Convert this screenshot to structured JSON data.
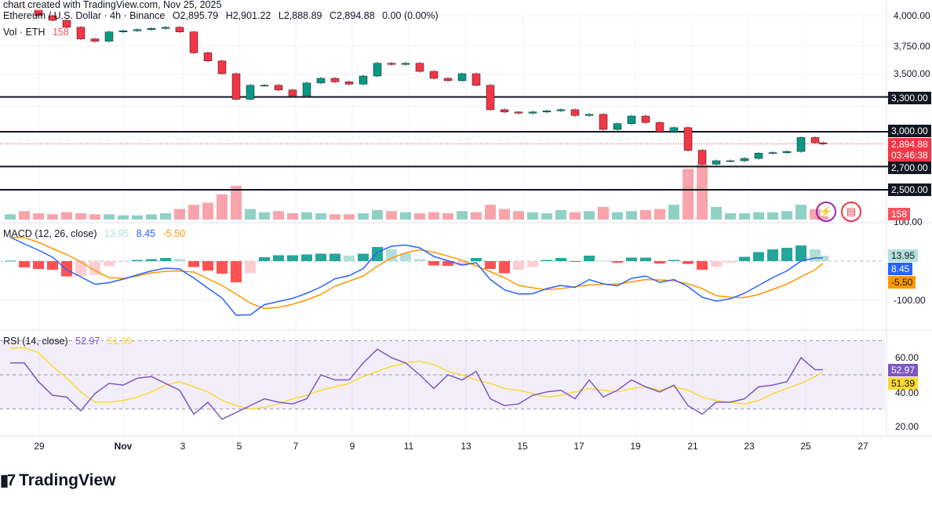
{
  "header": {
    "snapshot_text": "chart created with TradingView.com, Nov 25, 2025",
    "symbol": "Ethereum / U.S. Dollar · 4h · Binance",
    "open": "O2,895.79",
    "high": "H2,901.22",
    "low": "L2,888.89",
    "close": "C2,894.88",
    "change": "0.00 (0.00%)",
    "vol_label": "Vol · ETH",
    "vol_value": "158"
  },
  "macd_legend": {
    "label": "MACD (12, 26, close)",
    "hist": "13.95",
    "macd": "8.45",
    "signal": "-5.50"
  },
  "rsi_legend": {
    "label": "RSI (14, close)",
    "rsi": "52.97",
    "ma": "51.39"
  },
  "price_axis": {
    "ticks": [
      "4,000.00",
      "3,750.00",
      "3,500.00"
    ],
    "levels": [
      "3,300.00",
      "3,000.00",
      "2,700.00",
      "2,500.00"
    ],
    "current_price": "2,894.88",
    "countdown": "03:46:38",
    "volume_tag": "158"
  },
  "macd_axis": {
    "top_tick": "100.00",
    "hist_tag": "13.95",
    "macd_tag": "8.45",
    "signal_tag": "-5.50",
    "bottom_tick": "-100.00"
  },
  "rsi_axis": {
    "tick_60": "60.00",
    "rsi_tag": "52.97",
    "ma_tag": "51.39",
    "tick_40": "40.00",
    "tick_20": "20.00"
  },
  "date_axis": [
    "29",
    "Nov",
    "3",
    "5",
    "7",
    "9",
    "11",
    "13",
    "15",
    "17",
    "19",
    "21",
    "23",
    "25",
    "27"
  ],
  "logo": {
    "text": "TradingView"
  },
  "icons": {
    "lightning": "lightning-assistant-icon",
    "flag": "us-flag-icon"
  },
  "colors": {
    "up": "#089981",
    "down": "#f23645",
    "macd": "#2962ff",
    "signal": "#ff9800",
    "rsi": "#7e57c2",
    "rsi_ma": "#fdd835",
    "level": "#131722"
  },
  "chart_data": {
    "type": "candlestick",
    "interval_shown": "4h",
    "sampling": "12h (approximate read-off)",
    "start": "Oct 28 00:00",
    "price": {
      "ylim": [
        2450,
        4100
      ],
      "closes": [
        4090,
        4060,
        4000,
        3960,
        3900,
        3800,
        3780,
        3860,
        3870,
        3880,
        3890,
        3900,
        3860,
        3680,
        3610,
        3500,
        3280,
        3400,
        3400,
        3360,
        3310,
        3420,
        3460,
        3430,
        3410,
        3480,
        3590,
        3580,
        3590,
        3520,
        3460,
        3440,
        3500,
        3400,
        3190,
        3170,
        3160,
        3170,
        3180,
        3190,
        3140,
        3150,
        3020,
        3070,
        3135,
        3080,
        3000,
        3035,
        2840,
        2720,
        2750,
        2750,
        2770,
        2815,
        2820,
        2830,
        2950,
        2905,
        2894.88
      ],
      "horizontal_levels": [
        3300,
        3000,
        2700,
        2500
      ],
      "current": 2894.88
    },
    "volume": [
      250,
      400,
      300,
      250,
      350,
      300,
      250,
      250,
      200,
      200,
      250,
      300,
      500,
      700,
      800,
      1200,
      1600,
      500,
      350,
      400,
      300,
      350,
      300,
      250,
      250,
      300,
      450,
      400,
      350,
      300,
      350,
      300,
      400,
      350,
      700,
      500,
      400,
      350,
      300,
      450,
      350,
      400,
      600,
      350,
      400,
      450,
      500,
      700,
      2400,
      2600,
      600,
      300,
      300,
      350,
      350,
      400,
      700,
      500,
      158
    ],
    "macd": {
      "ylim": [
        -150,
        90
      ],
      "macd": [
        61,
        44,
        28,
        10,
        -22,
        -40,
        -59,
        -55,
        -46,
        -35,
        -25,
        -18,
        -20,
        -43,
        -69,
        -94,
        -138,
        -137,
        -111,
        -103,
        -95,
        -82,
        -66,
        -45,
        -37,
        -19,
        23,
        38,
        41,
        34,
        12,
        1,
        -10,
        -4,
        -47,
        -73,
        -84,
        -83,
        -70,
        -62,
        -67,
        -47,
        -58,
        -63,
        -44,
        -38,
        -54,
        -47,
        -65,
        -92,
        -102,
        -96,
        -82,
        -62,
        -42,
        -25,
        0,
        8,
        8.45
      ],
      "signal": [
        60,
        60,
        48,
        32,
        17,
        -2,
        -24,
        -42,
        -44,
        -38,
        -30,
        -26,
        -25,
        -28,
        -45,
        -62,
        -84,
        -107,
        -121,
        -118,
        -110,
        -99,
        -85,
        -64,
        -51,
        -38,
        -13,
        8,
        21,
        29,
        23,
        13,
        2,
        -12,
        -27,
        -42,
        -62,
        -68,
        -73,
        -70,
        -65,
        -61,
        -59,
        -59,
        -53,
        -47,
        -48,
        -50,
        -58,
        -70,
        -88,
        -92,
        -93,
        -85,
        -72,
        -59,
        -40,
        -22,
        -5.5
      ]
    },
    "rsi": {
      "ylim": [
        15,
        75
      ],
      "bands": [
        30,
        50,
        70
      ],
      "rsi": [
        57,
        57,
        46,
        38,
        37,
        29,
        39,
        45,
        44,
        48,
        49,
        45,
        41,
        27,
        34,
        24,
        28,
        32,
        36,
        34,
        33,
        36,
        50,
        47,
        47,
        57,
        65,
        60,
        57,
        50,
        42,
        50,
        47,
        52,
        36,
        32,
        33,
        38,
        40,
        41,
        36,
        47,
        37,
        41,
        47,
        43,
        40,
        44,
        32,
        27,
        34,
        34,
        36,
        43,
        44,
        46,
        60,
        53,
        52.97
      ],
      "ma": [
        65.5,
        66,
        63,
        55,
        48,
        40,
        34,
        34,
        35,
        37,
        40,
        44,
        46,
        43,
        40,
        35,
        32,
        30,
        31,
        33,
        36,
        38,
        41,
        43,
        45,
        49,
        52,
        55,
        57,
        58,
        56,
        52,
        50,
        47,
        45,
        42,
        41,
        39,
        37,
        38,
        40,
        42,
        41,
        40,
        42,
        43,
        41,
        43,
        41,
        37,
        35,
        34,
        33,
        35,
        39,
        42,
        45,
        49,
        51.39
      ]
    }
  }
}
